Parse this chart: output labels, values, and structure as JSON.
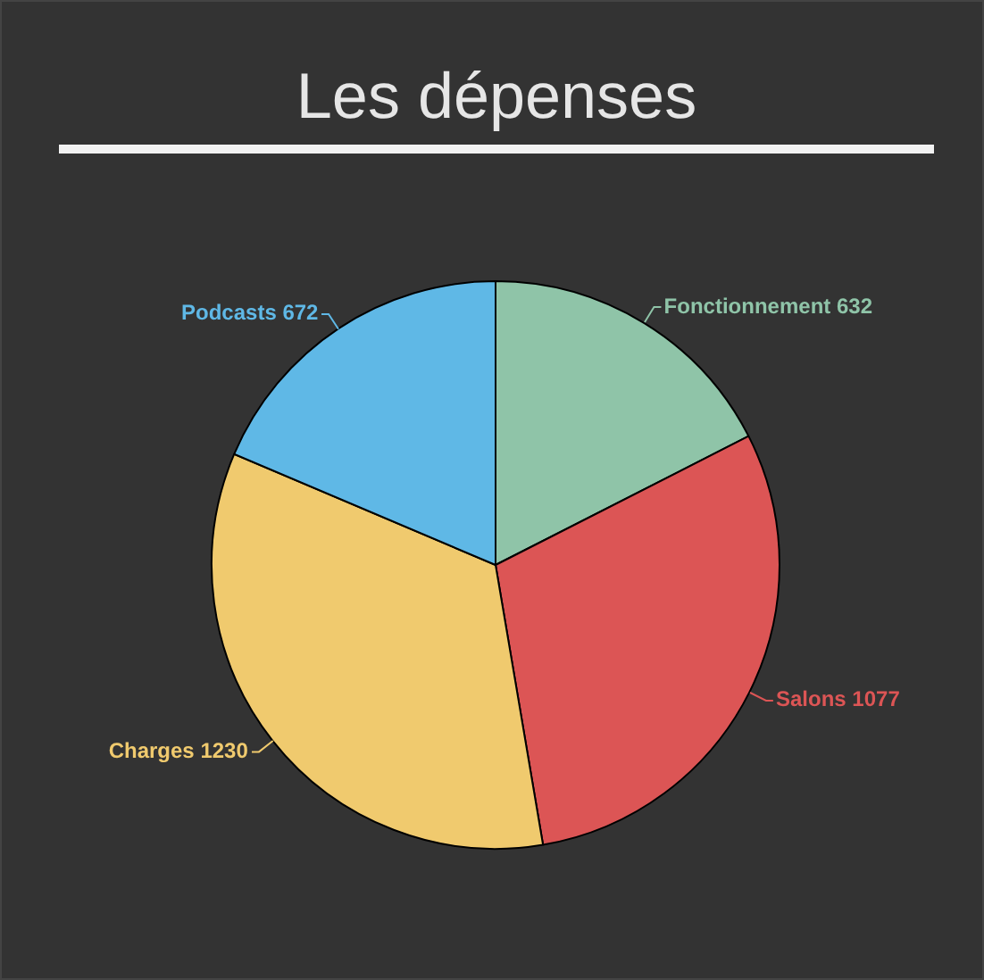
{
  "chart_data": {
    "type": "pie",
    "title": "Les dépenses",
    "categories": [
      "Fonctionnement",
      "Salons",
      "Charges",
      "Podcasts"
    ],
    "values": [
      632,
      1077,
      1230,
      672
    ],
    "colors": [
      "#8fc4a8",
      "#dc5555",
      "#f0ca6e",
      "#5fb8e6"
    ],
    "data_labels": true,
    "legend": false
  }
}
